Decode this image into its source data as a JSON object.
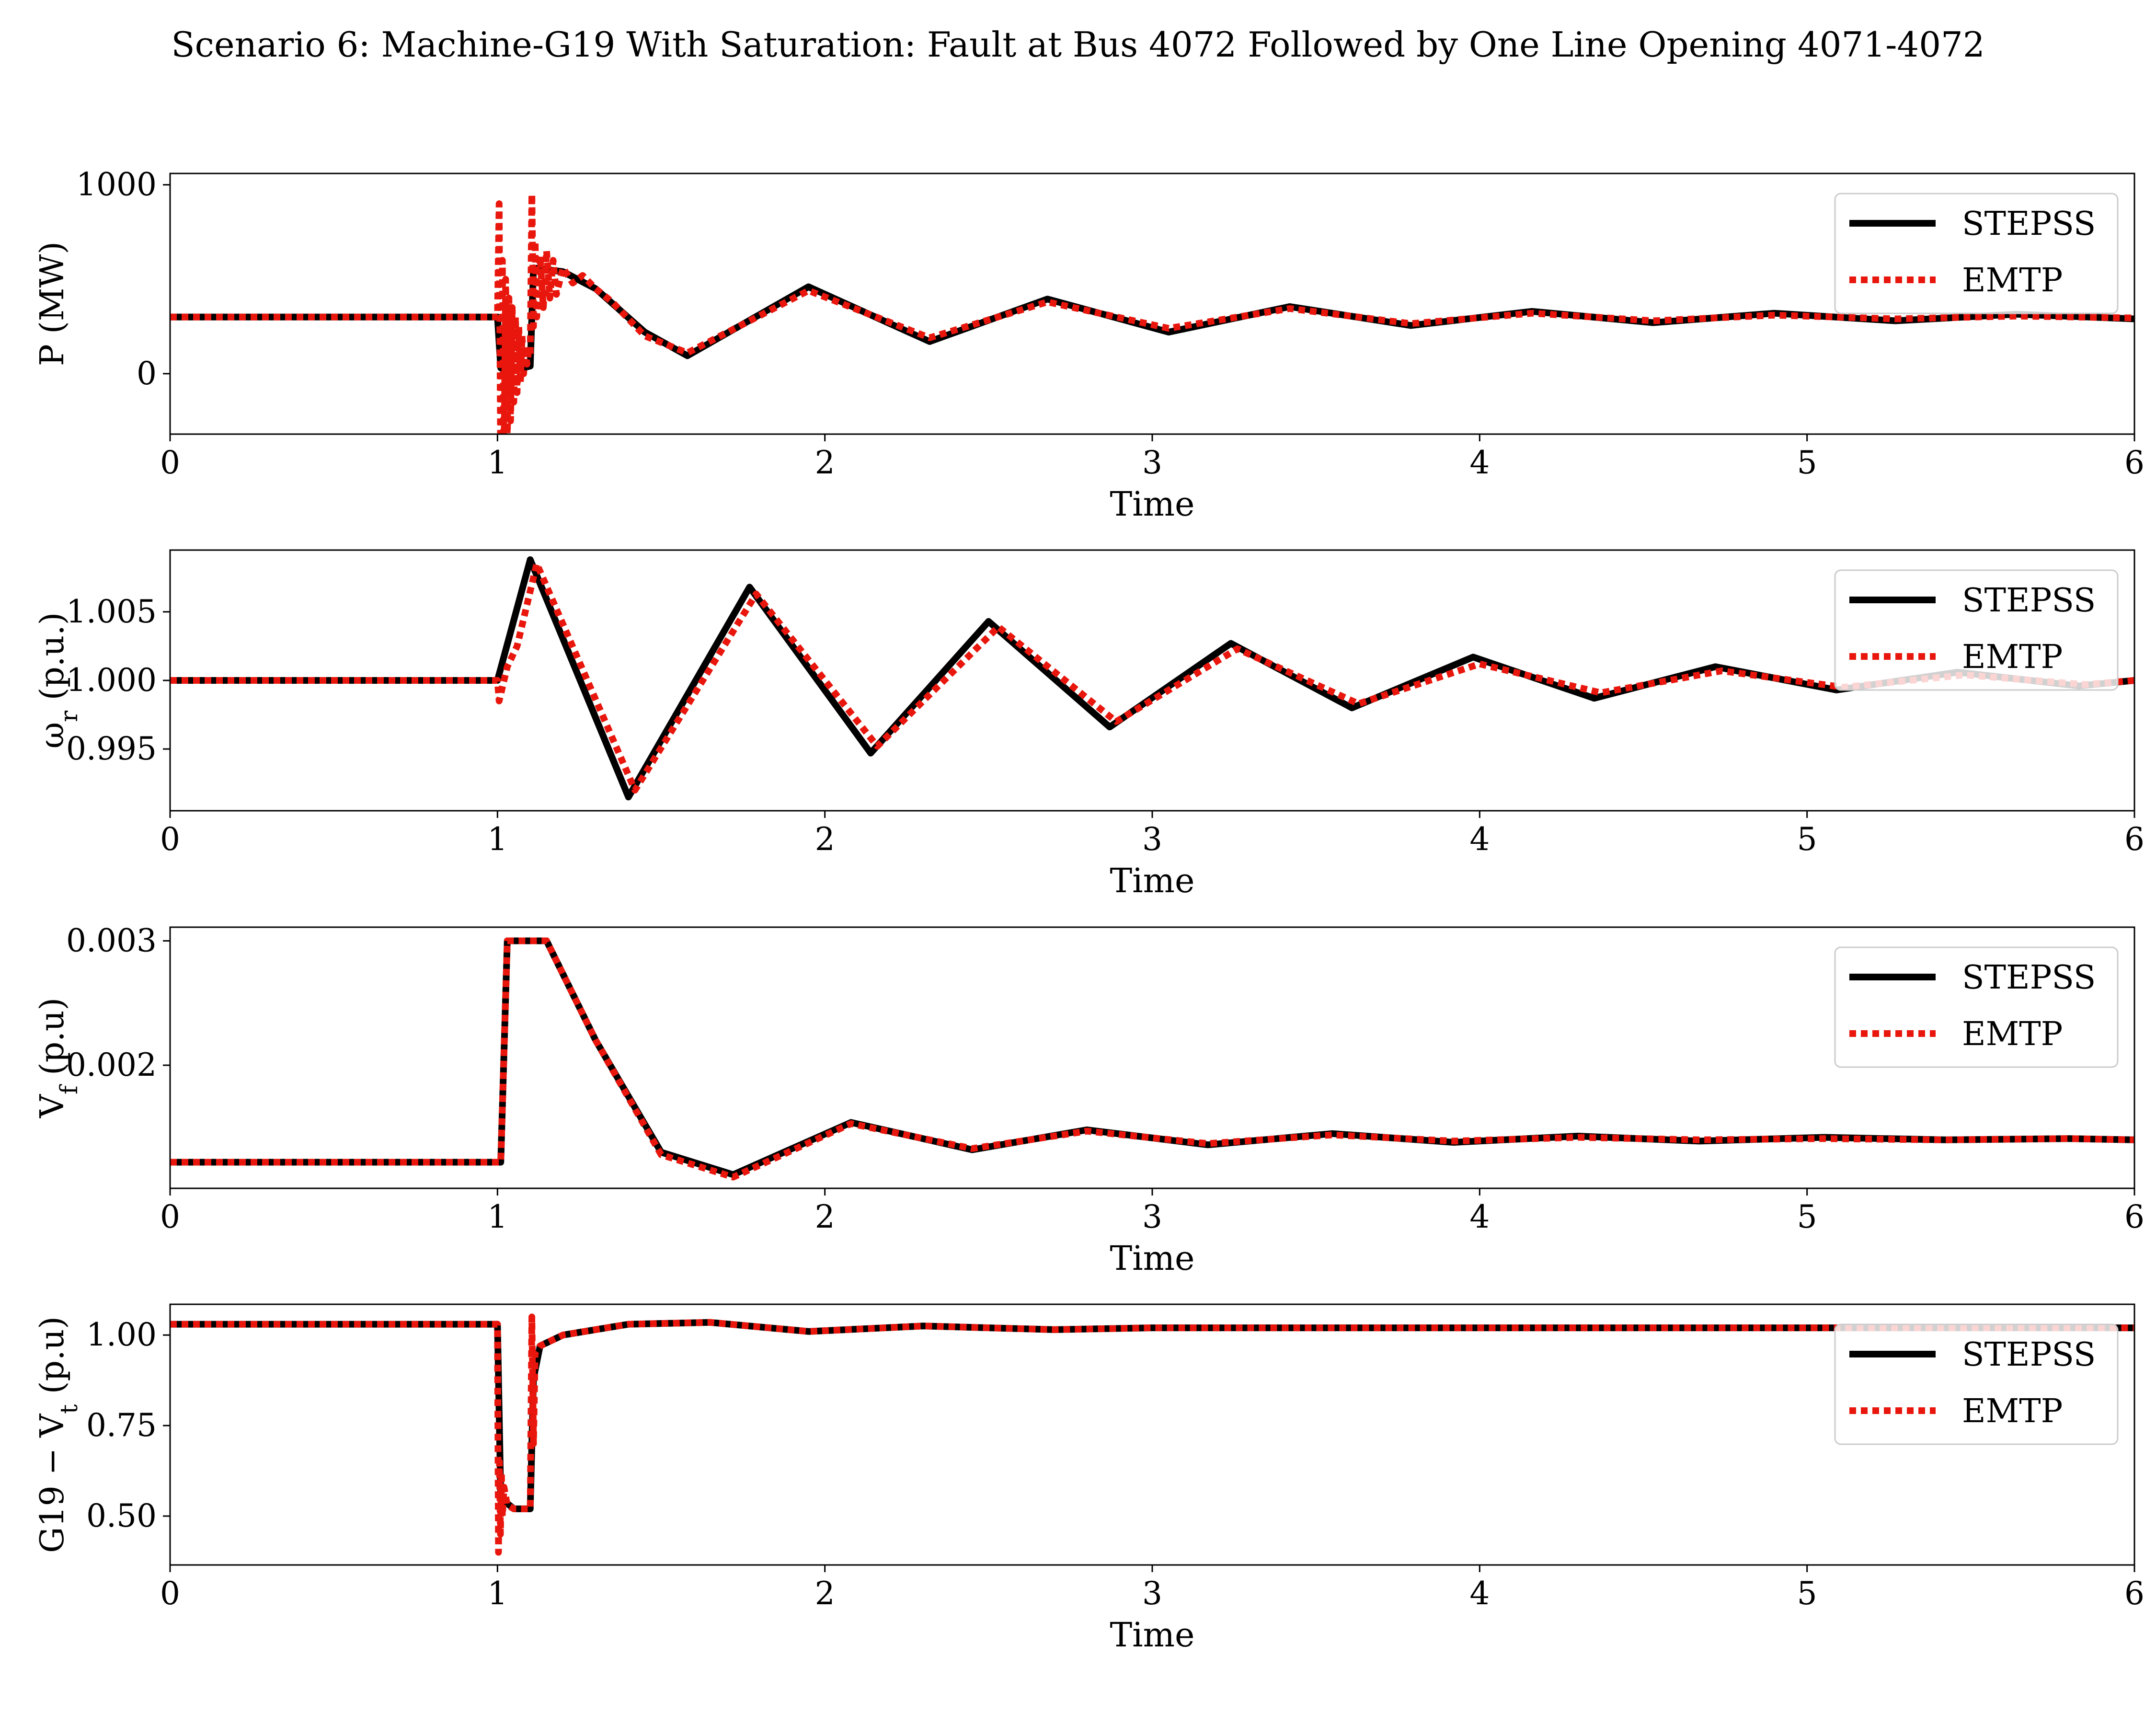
{
  "title": "Scenario 6: Machine-G19 With Saturation: Fault at Bus 4072 Followed by One Line Opening 4071-4072",
  "colors": {
    "STEPSS": "#000000",
    "EMTP": "#e8160c"
  },
  "chart_data": [
    {
      "type": "line",
      "xlabel": "Time",
      "ylabel": "P (MW)",
      "xlim": [
        0,
        6
      ],
      "ylim": [
        -320,
        1060
      ],
      "xticks": [
        0,
        1,
        2,
        3,
        4,
        5,
        6
      ],
      "yticks": [
        0,
        1000
      ],
      "ytick_labels": [
        "0",
        "1000"
      ],
      "grid": false,
      "legend": "top-right",
      "series": [
        {
          "name": "STEPSS",
          "style": "solid",
          "x": [
            0,
            1.0,
            1.01,
            1.05,
            1.1,
            1.11,
            1.2,
            1.3,
            1.45,
            1.58,
            1.95,
            2.32,
            2.68,
            3.05,
            3.42,
            3.79,
            4.16,
            4.53,
            4.9,
            5.27,
            5.64,
            6.0
          ],
          "y": [
            300,
            300,
            30,
            20,
            40,
            560,
            540,
            450,
            220,
            95,
            460,
            170,
            395,
            220,
            355,
            255,
            330,
            270,
            320,
            280,
            315,
            290
          ]
        },
        {
          "name": "EMTP",
          "style": "dotted",
          "x": [
            0,
            1.0,
            1.005,
            1.01,
            1.015,
            1.02,
            1.025,
            1.03,
            1.035,
            1.04,
            1.045,
            1.05,
            1.055,
            1.06,
            1.065,
            1.07,
            1.075,
            1.08,
            1.085,
            1.09,
            1.095,
            1.1,
            1.105,
            1.11,
            1.115,
            1.12,
            1.13,
            1.14,
            1.15,
            1.16,
            1.17,
            1.18,
            1.2,
            1.23,
            1.26,
            1.3,
            1.35,
            1.45,
            1.58,
            1.95,
            2.32,
            2.68,
            3.05,
            3.42,
            3.79,
            4.16,
            4.53,
            4.9,
            5.27,
            5.64,
            6.0
          ],
          "y": [
            300,
            300,
            900,
            -560,
            600,
            -450,
            500,
            -350,
            400,
            -250,
            350,
            -150,
            300,
            -100,
            250,
            -50,
            200,
            0,
            150,
            50,
            120,
            100,
            950,
            250,
            700,
            300,
            620,
            350,
            650,
            400,
            600,
            420,
            560,
            480,
            520,
            450,
            380,
            200,
            110,
            440,
            190,
            380,
            240,
            345,
            265,
            320,
            280,
            310,
            290,
            305,
            295
          ]
        }
      ]
    },
    {
      "type": "line",
      "xlabel": "Time",
      "ylabel": "ω_r (p.u.)",
      "xlim": [
        0,
        6
      ],
      "ylim": [
        0.9905,
        1.0095
      ],
      "xticks": [
        0,
        1,
        2,
        3,
        4,
        5,
        6
      ],
      "yticks": [
        0.995,
        1.0,
        1.005
      ],
      "ytick_labels": [
        "0.995",
        "1.000",
        "1.005"
      ],
      "grid": false,
      "legend": "top-right",
      "series": [
        {
          "name": "STEPSS",
          "style": "solid",
          "x": [
            0,
            1.0,
            1.1,
            1.4,
            1.77,
            2.14,
            2.5,
            2.87,
            3.24,
            3.61,
            3.98,
            4.35,
            4.72,
            5.09,
            5.46,
            5.83,
            6.0
          ],
          "y": [
            1.0,
            1.0,
            1.0088,
            0.9915,
            1.0068,
            0.9947,
            1.0043,
            0.9966,
            1.0027,
            0.998,
            1.0017,
            0.9987,
            1.001,
            0.9993,
            1.0006,
            0.9996,
            1.0
          ]
        },
        {
          "name": "EMTP",
          "style": "dotted",
          "x": [
            0,
            1.0,
            1.005,
            1.03,
            1.06,
            1.12,
            1.42,
            1.79,
            2.16,
            2.53,
            2.89,
            3.26,
            3.63,
            4.0,
            4.37,
            4.74,
            5.11,
            5.48,
            5.85,
            6.0
          ],
          "y": [
            1.0,
            1.0,
            0.9985,
            1.001,
            1.0025,
            1.0085,
            0.992,
            1.0063,
            0.9952,
            1.0039,
            0.997,
            1.0023,
            0.9983,
            1.0012,
            0.9991,
            1.0007,
            0.9995,
            1.0004,
            0.9997,
            1.0
          ]
        }
      ]
    },
    {
      "type": "line",
      "xlabel": "Time",
      "ylabel": "V_f (p.u)",
      "xlim": [
        0,
        6
      ],
      "ylim": [
        0.00101,
        0.00311
      ],
      "xticks": [
        0,
        1,
        2,
        3,
        4,
        5,
        6
      ],
      "yticks": [
        0.002,
        0.003
      ],
      "ytick_labels": [
        "0.002",
        "0.003"
      ],
      "grid": false,
      "legend": "top-right",
      "series": [
        {
          "name": "STEPSS",
          "style": "solid",
          "x": [
            0,
            1.0,
            1.01,
            1.03,
            1.15,
            1.3,
            1.5,
            1.72,
            2.08,
            2.45,
            2.8,
            3.17,
            3.55,
            3.92,
            4.3,
            4.67,
            5.05,
            5.42,
            5.8,
            6.0
          ],
          "y": [
            0.00122,
            0.00122,
            0.00122,
            0.003,
            0.003,
            0.0022,
            0.0013,
            0.00112,
            0.00154,
            0.00132,
            0.00148,
            0.00136,
            0.00145,
            0.00138,
            0.00143,
            0.00139,
            0.00142,
            0.0014,
            0.00141,
            0.0014
          ]
        },
        {
          "name": "EMTP",
          "style": "dotted",
          "x": [
            0,
            1.0,
            1.01,
            1.03,
            1.15,
            1.3,
            1.5,
            1.72,
            2.08,
            2.45,
            2.8,
            3.17,
            3.55,
            3.92,
            4.3,
            4.67,
            5.05,
            5.42,
            5.8,
            6.0
          ],
          "y": [
            0.00122,
            0.00122,
            0.00122,
            0.003,
            0.003,
            0.0022,
            0.00128,
            0.0011,
            0.00153,
            0.00133,
            0.00147,
            0.00137,
            0.00144,
            0.00139,
            0.00142,
            0.0014,
            0.00141,
            0.0014,
            0.00141,
            0.0014
          ]
        }
      ]
    },
    {
      "type": "line",
      "xlabel": "Time",
      "ylabel": "G19 − V_t (p.u)",
      "xlim": [
        0,
        6
      ],
      "ylim": [
        0.365,
        1.085
      ],
      "xticks": [
        0,
        1,
        2,
        3,
        4,
        5,
        6
      ],
      "yticks": [
        0.5,
        0.75,
        1.0
      ],
      "ytick_labels": [
        "0.50",
        "0.75",
        "1.00"
      ],
      "grid": false,
      "legend": "top-right",
      "series": [
        {
          "name": "STEPSS",
          "style": "solid",
          "x": [
            0,
            1.0,
            1.01,
            1.05,
            1.1,
            1.11,
            1.13,
            1.2,
            1.4,
            1.65,
            1.95,
            2.3,
            2.7,
            3.0,
            3.5,
            4.0,
            6.0
          ],
          "y": [
            1.03,
            1.03,
            0.55,
            0.52,
            0.52,
            0.88,
            0.97,
            1.0,
            1.03,
            1.035,
            1.01,
            1.025,
            1.015,
            1.02,
            1.02,
            1.02,
            1.02
          ]
        },
        {
          "name": "EMTP",
          "style": "dotted",
          "x": [
            0,
            1.0,
            1.003,
            1.006,
            1.009,
            1.012,
            1.015,
            1.02,
            1.03,
            1.05,
            1.08,
            1.1,
            1.105,
            1.11,
            1.115,
            1.13,
            1.2,
            1.4,
            1.65,
            1.95,
            2.3,
            2.7,
            3.0,
            3.5,
            4.0,
            6.0
          ],
          "y": [
            1.03,
            1.03,
            0.4,
            0.65,
            0.45,
            0.62,
            0.5,
            0.58,
            0.53,
            0.52,
            0.52,
            0.52,
            1.05,
            0.7,
            0.95,
            0.97,
            1.0,
            1.03,
            1.035,
            1.01,
            1.025,
            1.015,
            1.02,
            1.02,
            1.02,
            1.02
          ]
        }
      ]
    }
  ]
}
